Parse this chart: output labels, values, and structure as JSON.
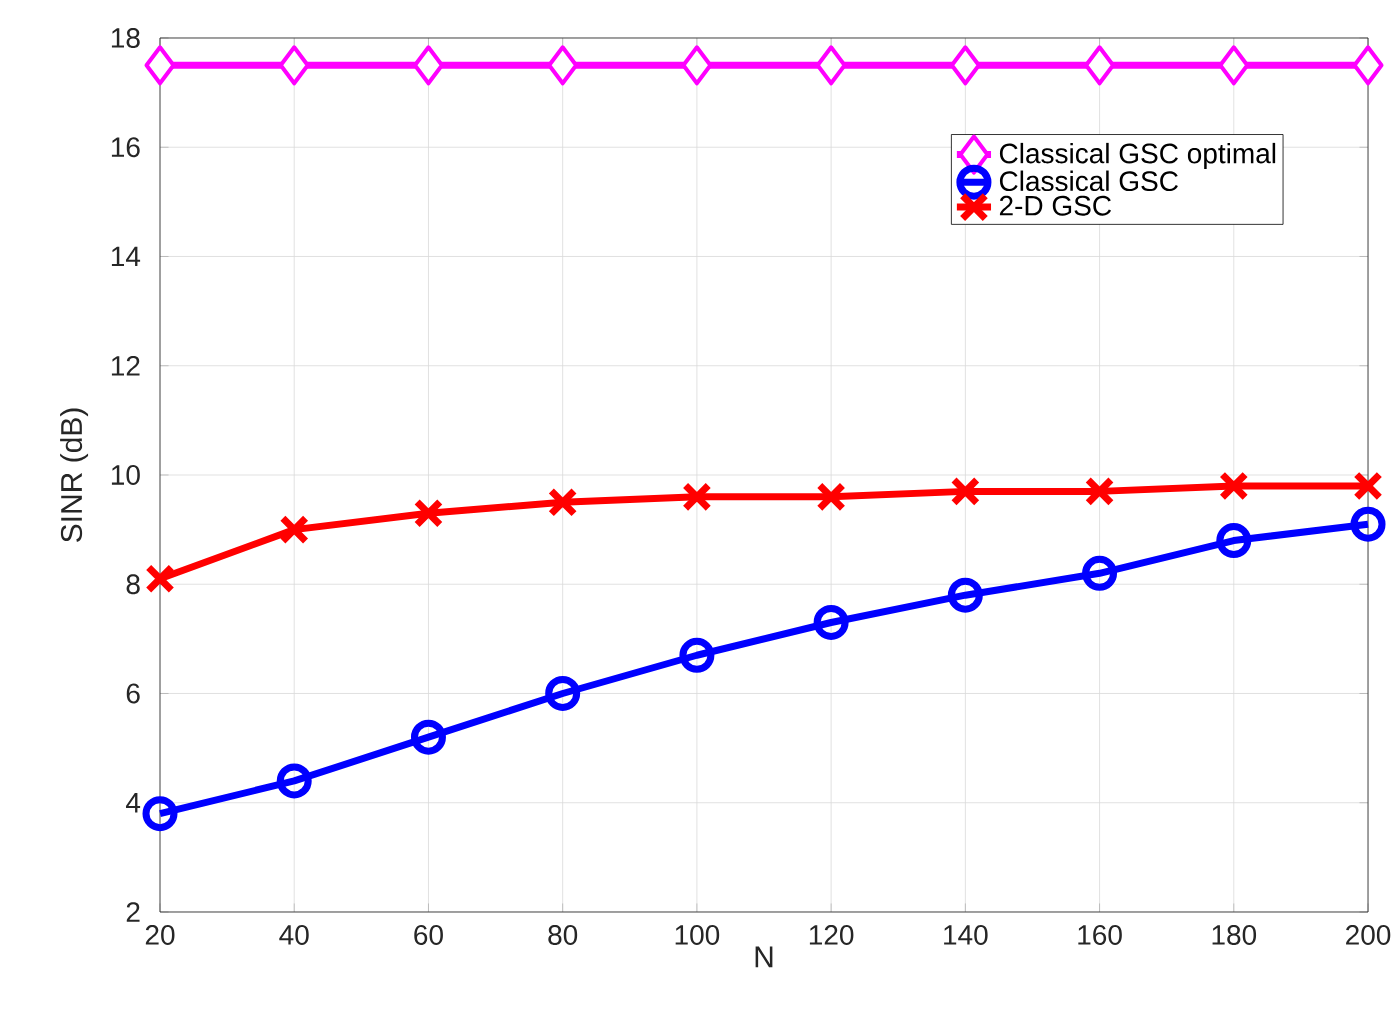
{
  "chart_data": {
    "type": "line",
    "xlabel": "N",
    "ylabel": "SINR (dB)",
    "x": [
      20,
      40,
      60,
      80,
      100,
      120,
      140,
      160,
      180,
      200
    ],
    "series": [
      {
        "name": "Classical GSC optimal",
        "color": "#ff00ff",
        "marker": "diamond",
        "values": [
          17.5,
          17.5,
          17.5,
          17.5,
          17.5,
          17.5,
          17.5,
          17.5,
          17.5,
          17.5
        ]
      },
      {
        "name": "Classical GSC",
        "color": "#0000ff",
        "marker": "circle",
        "values": [
          3.8,
          4.4,
          5.2,
          6.0,
          6.7,
          7.3,
          7.8,
          8.2,
          8.8,
          9.1
        ]
      },
      {
        "name": "2-D GSC",
        "color": "#ff0000",
        "marker": "cross",
        "values": [
          8.1,
          9.0,
          9.3,
          9.5,
          9.6,
          9.6,
          9.7,
          9.7,
          9.8,
          9.8
        ]
      }
    ],
    "xlim": [
      20,
      200
    ],
    "xticks": [
      20,
      40,
      60,
      80,
      100,
      120,
      140,
      160,
      180,
      200
    ],
    "ylim": [
      2,
      18
    ],
    "yticks": [
      2,
      4,
      6,
      8,
      10,
      12,
      14,
      16,
      18
    ],
    "grid": true,
    "legend": "top right"
  }
}
